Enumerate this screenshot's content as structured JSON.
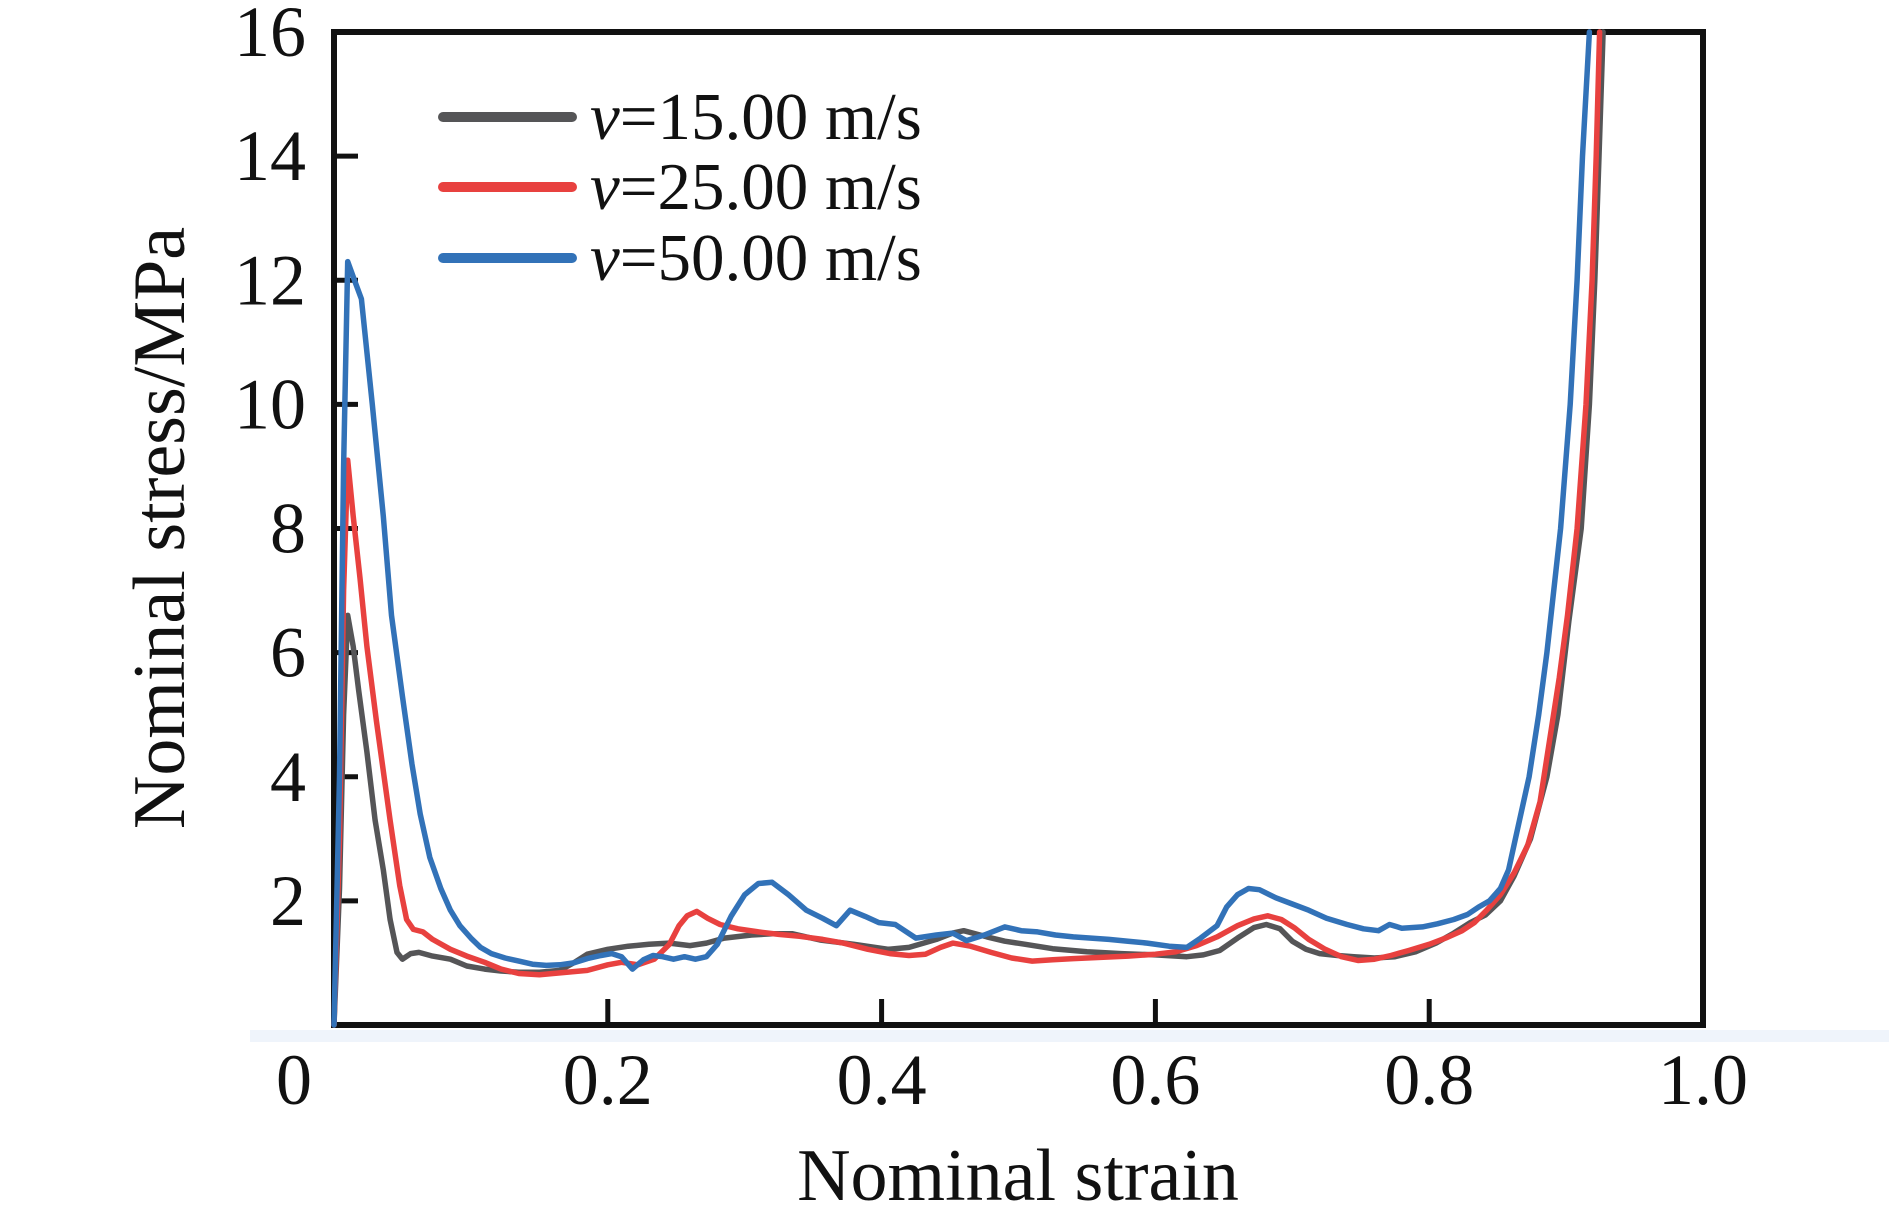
{
  "figure": {
    "background": "#ffffff",
    "artifact_strip_color": "#e2ebf7"
  },
  "chart_data": {
    "type": "line",
    "title": "",
    "xlabel": "Nominal strain",
    "ylabel": "Nominal stress/MPa",
    "xlim": [
      0,
      1.0
    ],
    "ylim": [
      0,
      16
    ],
    "grid": false,
    "axis_color": "#111111",
    "x_ticks": [
      0,
      0.2,
      0.4,
      0.6,
      0.8,
      1.0
    ],
    "x_tick_labels": [
      "0",
      "0.2",
      "0.4",
      "0.6",
      "0.8",
      "1.0"
    ],
    "y_ticks": [
      2,
      4,
      6,
      8,
      10,
      12,
      14,
      16
    ],
    "y_tick_labels": [
      "2",
      "4",
      "6",
      "8",
      "10",
      "12",
      "14",
      "16"
    ],
    "legend": {
      "position": "upper-left-inside",
      "items": [
        {
          "label": "v=15.00 m/s",
          "symbol": "v",
          "rest": "=15.00 m/s"
        },
        {
          "label": "v=25.00 m/s",
          "symbol": "v",
          "rest": "=25.00 m/s"
        },
        {
          "label": "v=50.00 m/s",
          "symbol": "v",
          "rest": "=50.00 m/s"
        }
      ]
    },
    "series": [
      {
        "name": "v=15.00 m/s",
        "color": "#555557",
        "x": [
          0,
          0.004,
          0.007,
          0.01,
          0.014,
          0.018,
          0.024,
          0.03,
          0.036,
          0.041,
          0.046,
          0.05,
          0.056,
          0.062,
          0.072,
          0.085,
          0.097,
          0.11,
          0.122,
          0.135,
          0.15,
          0.165,
          0.175,
          0.185,
          0.2,
          0.215,
          0.23,
          0.245,
          0.26,
          0.272,
          0.285,
          0.305,
          0.32,
          0.335,
          0.355,
          0.38,
          0.405,
          0.42,
          0.44,
          0.452,
          0.46,
          0.477,
          0.49,
          0.505,
          0.525,
          0.55,
          0.575,
          0.6,
          0.623,
          0.635,
          0.647,
          0.66,
          0.672,
          0.681,
          0.691,
          0.7,
          0.71,
          0.72,
          0.733,
          0.745,
          0.76,
          0.775,
          0.79,
          0.805,
          0.818,
          0.83,
          0.841,
          0.852,
          0.862,
          0.874,
          0.886,
          0.894,
          0.902,
          0.911,
          0.917,
          0.921,
          0.924,
          0.927
        ],
        "y": [
          0,
          2.2,
          5.0,
          6.6,
          6.1,
          5.4,
          4.4,
          3.3,
          2.5,
          1.7,
          1.17,
          1.06,
          1.15,
          1.17,
          1.11,
          1.06,
          0.95,
          0.9,
          0.87,
          0.85,
          0.85,
          0.88,
          1.0,
          1.14,
          1.22,
          1.27,
          1.3,
          1.32,
          1.28,
          1.32,
          1.4,
          1.45,
          1.47,
          1.47,
          1.37,
          1.3,
          1.22,
          1.25,
          1.38,
          1.48,
          1.52,
          1.42,
          1.35,
          1.3,
          1.23,
          1.18,
          1.15,
          1.13,
          1.1,
          1.13,
          1.2,
          1.4,
          1.57,
          1.62,
          1.55,
          1.35,
          1.22,
          1.15,
          1.12,
          1.1,
          1.08,
          1.1,
          1.18,
          1.32,
          1.48,
          1.65,
          1.77,
          2.0,
          2.4,
          3.0,
          4.0,
          5.0,
          6.5,
          8.0,
          10.0,
          12.0,
          14.0,
          16.0
        ]
      },
      {
        "name": "v=25.00 m/s",
        "color": "#e8413f",
        "x": [
          0,
          0.004,
          0.007,
          0.01,
          0.014,
          0.019,
          0.024,
          0.031,
          0.041,
          0.048,
          0.053,
          0.058,
          0.065,
          0.072,
          0.085,
          0.097,
          0.11,
          0.122,
          0.135,
          0.15,
          0.165,
          0.185,
          0.2,
          0.21,
          0.222,
          0.234,
          0.245,
          0.252,
          0.258,
          0.265,
          0.273,
          0.282,
          0.295,
          0.31,
          0.325,
          0.34,
          0.357,
          0.372,
          0.39,
          0.406,
          0.42,
          0.432,
          0.443,
          0.452,
          0.465,
          0.48,
          0.495,
          0.51,
          0.525,
          0.54,
          0.56,
          0.58,
          0.6,
          0.615,
          0.63,
          0.645,
          0.66,
          0.672,
          0.682,
          0.692,
          0.702,
          0.712,
          0.724,
          0.736,
          0.748,
          0.76,
          0.772,
          0.785,
          0.8,
          0.812,
          0.824,
          0.833,
          0.842,
          0.852,
          0.862,
          0.872,
          0.881,
          0.888,
          0.895,
          0.901,
          0.908,
          0.9145,
          0.919,
          0.922,
          0.9245
        ],
        "y": [
          0,
          3.0,
          7.0,
          9.1,
          8.2,
          7.2,
          6.1,
          4.9,
          3.3,
          2.25,
          1.7,
          1.54,
          1.5,
          1.38,
          1.22,
          1.11,
          1.01,
          0.9,
          0.83,
          0.81,
          0.84,
          0.88,
          0.97,
          1.01,
          0.97,
          1.06,
          1.3,
          1.6,
          1.76,
          1.83,
          1.72,
          1.62,
          1.55,
          1.5,
          1.46,
          1.43,
          1.38,
          1.32,
          1.22,
          1.15,
          1.12,
          1.14,
          1.25,
          1.32,
          1.27,
          1.17,
          1.08,
          1.03,
          1.05,
          1.07,
          1.09,
          1.11,
          1.14,
          1.18,
          1.28,
          1.42,
          1.6,
          1.71,
          1.76,
          1.7,
          1.56,
          1.38,
          1.22,
          1.1,
          1.04,
          1.06,
          1.12,
          1.2,
          1.3,
          1.4,
          1.52,
          1.65,
          1.85,
          2.1,
          2.45,
          2.9,
          3.6,
          4.6,
          5.6,
          6.6,
          8.0,
          10.0,
          12.0,
          14.0,
          16.0
        ]
      },
      {
        "name": "v=50.00 m/s",
        "color": "#3272b8",
        "x": [
          0,
          0.004,
          0.007,
          0.01,
          0.015,
          0.02,
          0.028,
          0.036,
          0.042,
          0.05,
          0.057,
          0.063,
          0.07,
          0.078,
          0.085,
          0.092,
          0.1,
          0.107,
          0.115,
          0.125,
          0.135,
          0.145,
          0.155,
          0.165,
          0.175,
          0.185,
          0.195,
          0.203,
          0.21,
          0.218,
          0.226,
          0.233,
          0.24,
          0.248,
          0.256,
          0.264,
          0.272,
          0.28,
          0.29,
          0.3,
          0.31,
          0.32,
          0.332,
          0.345,
          0.357,
          0.367,
          0.377,
          0.388,
          0.398,
          0.41,
          0.425,
          0.44,
          0.452,
          0.462,
          0.475,
          0.49,
          0.502,
          0.514,
          0.527,
          0.54,
          0.553,
          0.566,
          0.58,
          0.594,
          0.61,
          0.623,
          0.633,
          0.645,
          0.652,
          0.66,
          0.668,
          0.676,
          0.688,
          0.7,
          0.712,
          0.725,
          0.74,
          0.752,
          0.763,
          0.771,
          0.78,
          0.795,
          0.806,
          0.818,
          0.828,
          0.836,
          0.844,
          0.852,
          0.858,
          0.863,
          0.873,
          0.88,
          0.886,
          0.896,
          0.903,
          0.908,
          0.912,
          0.917
        ],
        "y": [
          0,
          4.0,
          9.0,
          12.3,
          12.0,
          11.7,
          10.0,
          8.2,
          6.6,
          5.3,
          4.2,
          3.4,
          2.7,
          2.2,
          1.85,
          1.6,
          1.4,
          1.25,
          1.15,
          1.08,
          1.03,
          0.98,
          0.96,
          0.97,
          1.0,
          1.07,
          1.12,
          1.15,
          1.1,
          0.9,
          1.05,
          1.12,
          1.1,
          1.06,
          1.1,
          1.06,
          1.1,
          1.3,
          1.75,
          2.1,
          2.28,
          2.3,
          2.1,
          1.85,
          1.72,
          1.6,
          1.85,
          1.75,
          1.65,
          1.62,
          1.4,
          1.45,
          1.48,
          1.36,
          1.45,
          1.58,
          1.52,
          1.5,
          1.45,
          1.42,
          1.4,
          1.38,
          1.35,
          1.32,
          1.27,
          1.25,
          1.4,
          1.6,
          1.9,
          2.1,
          2.2,
          2.18,
          2.05,
          1.95,
          1.85,
          1.72,
          1.62,
          1.55,
          1.52,
          1.62,
          1.56,
          1.58,
          1.63,
          1.7,
          1.78,
          1.9,
          2.0,
          2.2,
          2.5,
          3.0,
          4.0,
          5.0,
          6.0,
          8.0,
          10.0,
          12.0,
          14.0,
          16.0
        ]
      }
    ]
  }
}
